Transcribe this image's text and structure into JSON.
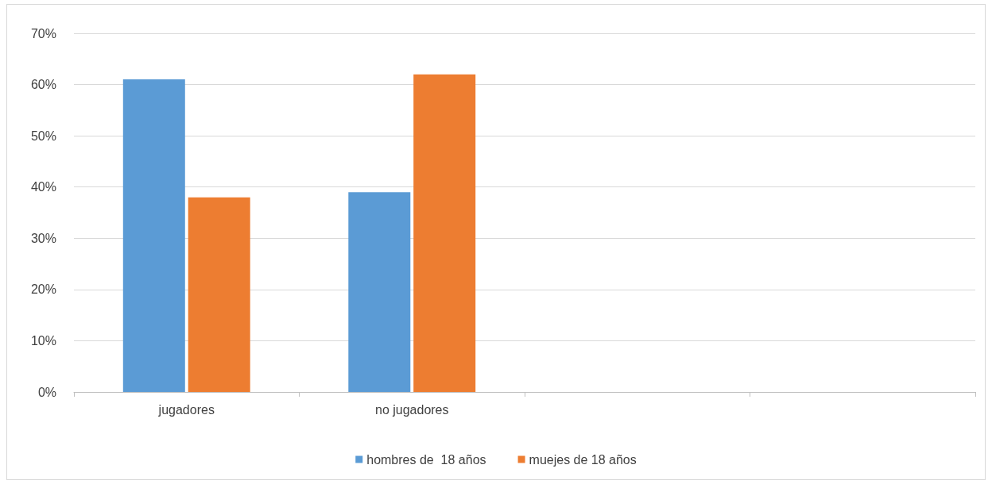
{
  "chart_data": {
    "type": "bar",
    "categories": [
      "jugadores",
      "no jugadores",
      null,
      null
    ],
    "series": [
      {
        "name": "hombres de  18 años",
        "color": "#5b9bd5",
        "values": [
          61,
          39,
          null,
          null
        ]
      },
      {
        "name": "muejes de 18 años",
        "color": "#ed7d31",
        "values": [
          38,
          62,
          null,
          null
        ]
      }
    ],
    "ylim": [
      0,
      70
    ],
    "yticks": [
      {
        "value": 0,
        "label": "0%"
      },
      {
        "value": 10,
        "label": "10%"
      },
      {
        "value": 20,
        "label": "20%"
      },
      {
        "value": 30,
        "label": "30%"
      },
      {
        "value": 40,
        "label": "40%"
      },
      {
        "value": 50,
        "label": "50%"
      },
      {
        "value": 60,
        "label": "60%"
      },
      {
        "value": 70,
        "label": "70%"
      }
    ],
    "grid": "y",
    "legend": "bottom"
  }
}
